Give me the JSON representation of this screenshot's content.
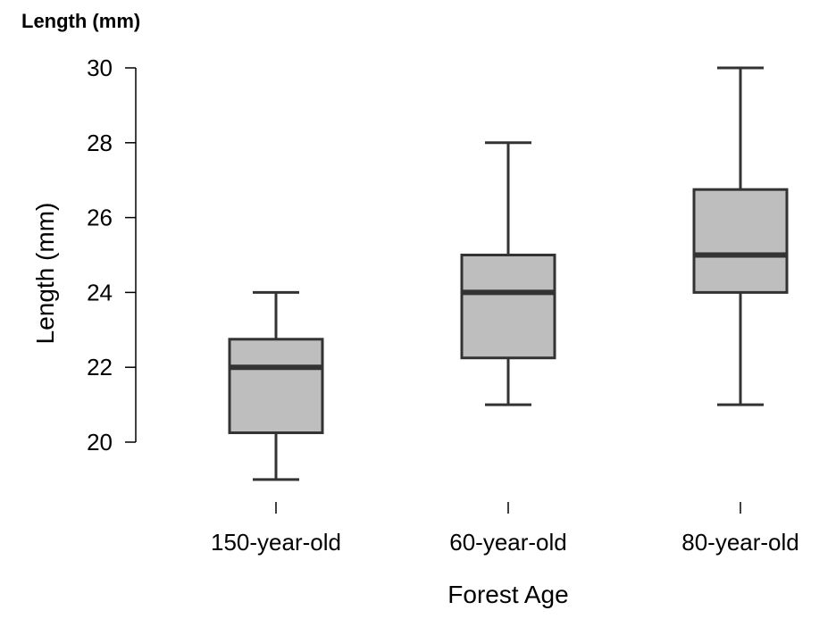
{
  "chart_data": {
    "type": "boxplot",
    "title": "Length (mm)",
    "xlabel": "Forest Age",
    "ylabel": "Length (mm)",
    "categories": [
      "150-year-old",
      "60-year-old",
      "80-year-old"
    ],
    "boxes": [
      {
        "category": "150-year-old",
        "min": 19,
        "q1": 20.25,
        "median": 22,
        "q3": 22.75,
        "max": 24
      },
      {
        "category": "60-year-old",
        "min": 21,
        "q1": 22.25,
        "median": 24,
        "q3": 25,
        "max": 28
      },
      {
        "category": "80-year-old",
        "min": 21,
        "q1": 24,
        "median": 25,
        "q3": 26.75,
        "max": 30
      }
    ],
    "yticks": [
      20,
      22,
      24,
      26,
      28,
      30
    ],
    "ylim": [
      20,
      30
    ],
    "grid": false,
    "legend": "none",
    "colors": {
      "box_fill": "#bebebe",
      "stroke": "#333333"
    }
  }
}
